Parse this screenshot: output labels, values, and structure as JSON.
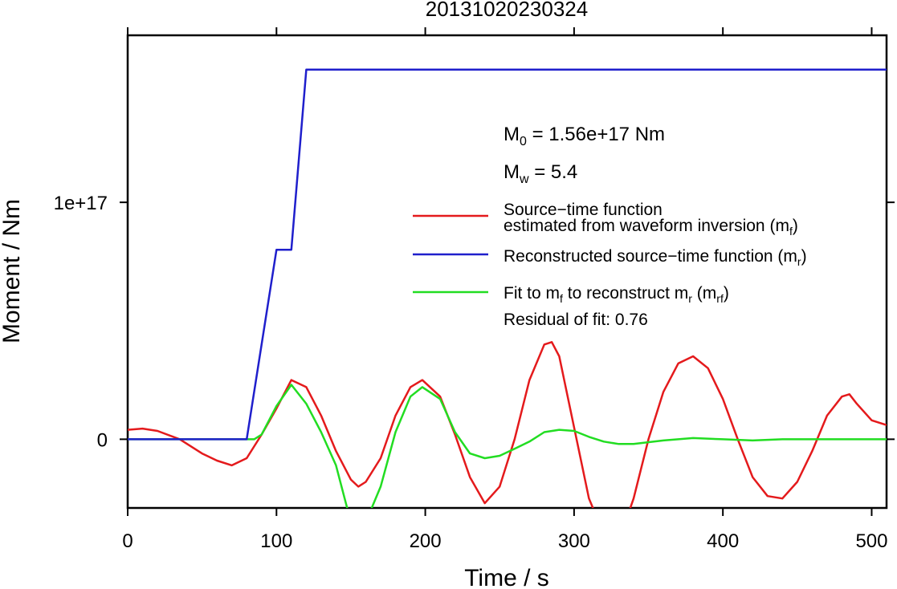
{
  "chart_data": {
    "type": "line",
    "title": "20131020230324",
    "xlabel": "Time / s",
    "ylabel": "Moment / Nm",
    "xlim": [
      0,
      510
    ],
    "ylim": [
      -2.9e+16,
      1.705e+17
    ],
    "x_ticks": [
      {
        "value": 0,
        "label": "0"
      },
      {
        "value": 100,
        "label": "100"
      },
      {
        "value": 200,
        "label": "200"
      },
      {
        "value": 300,
        "label": "300"
      },
      {
        "value": 400,
        "label": "400"
      },
      {
        "value": 500,
        "label": "500"
      }
    ],
    "y_ticks": [
      {
        "value": 0,
        "label": "0"
      },
      {
        "value": 1e+17,
        "label": "1e+17"
      }
    ],
    "annotations": {
      "m0": {
        "main": "M",
        "sub": "0",
        "rest": " = 1.56e+17 Nm"
      },
      "mw": {
        "main": "M",
        "sub": "w",
        "rest": " = 5.4"
      },
      "residual": "Residual of fit: 0.76"
    },
    "legend": [
      {
        "color": "#e41a1c",
        "line1": "Source−time function",
        "line2": "estimated from waveform inversion (m",
        "sub": "f",
        "close": ")"
      },
      {
        "color": "#1f1fcc",
        "line1": "Reconstructed source−time function (m",
        "sub": "r",
        "close": ")"
      },
      {
        "color": "#22dd22",
        "line1": "Fit to m",
        "sub1": "f",
        "mid": " to reconstruct m",
        "sub2": "r",
        "mid2": " (m",
        "sub3": "rf",
        "close": ")"
      }
    ],
    "series": [
      {
        "key": "reconstructed",
        "color": "#1f1fcc",
        "x": [
          0,
          80,
          100,
          110,
          120,
          510
        ],
        "y": [
          0,
          0,
          8e+16,
          8e+16,
          1.56e+17,
          1.56e+17
        ]
      },
      {
        "key": "waveform_inversion",
        "color": "#e41a1c",
        "x": [
          0,
          10,
          20,
          35,
          50,
          60,
          70,
          80,
          90,
          100,
          110,
          120,
          130,
          140,
          150,
          155,
          160,
          170,
          180,
          190,
          198,
          210,
          220,
          230,
          240,
          250,
          260,
          270,
          280,
          285,
          290,
          300,
          310,
          320,
          330,
          340,
          350,
          360,
          370,
          380,
          390,
          400,
          410,
          420,
          430,
          440,
          450,
          460,
          470,
          480,
          485,
          490,
          500,
          510
        ],
        "y": [
          4000000000000000.0,
          4500000000000000.0,
          3500000000000000.0,
          0,
          -6000000000000000.0,
          -9000000000000000.0,
          -1.1e+16,
          -8000000000000000.0,
          2000000000000000.0,
          1.3e+16,
          2.5e+16,
          2.2e+16,
          1e+16,
          -5000000000000000.0,
          -1.7e+16,
          -2e+16,
          -1.8e+16,
          -8000000000000000.0,
          1e+16,
          2.2e+16,
          2.5e+16,
          1.8e+16,
          2000000000000000.0,
          -1.6e+16,
          -2.7e+16,
          -2e+16,
          0,
          2.5e+16,
          4e+16,
          4.1e+16,
          3.5e+16,
          5000000000000000.0,
          -2.5e+16,
          -4e+16,
          -4.3e+16,
          -2.5e+16,
          0,
          2e+16,
          3.2e+16,
          3.5e+16,
          3e+16,
          1.7e+16,
          0,
          -1.6e+16,
          -2.4e+16,
          -2.5e+16,
          -1.8e+16,
          -5000000000000000.0,
          1e+16,
          1.8e+16,
          1.9e+16,
          1.5e+16,
          8000000000000000.0,
          6000000000000000.0
        ]
      },
      {
        "key": "fit",
        "color": "#22dd22",
        "x": [
          0,
          80,
          85,
          90,
          100,
          110,
          120,
          130,
          140,
          150,
          155,
          160,
          170,
          180,
          190,
          198,
          210,
          220,
          230,
          240,
          250,
          260,
          270,
          280,
          290,
          300,
          310,
          320,
          330,
          340,
          360,
          380,
          400,
          420,
          440,
          460,
          480,
          500,
          510
        ],
        "y": [
          0,
          0,
          0,
          2000000000000000.0,
          1.4e+16,
          2.3e+16,
          1.5e+16,
          3000000000000000.0,
          -1.1e+16,
          -3.5e+16,
          -3.8e+16,
          -3.5e+16,
          -2e+16,
          3000000000000000.0,
          1.8e+16,
          2.2e+16,
          1.7e+16,
          3000000000000000.0,
          -6000000000000000.0,
          -8000000000000000.0,
          -7000000000000000.0,
          -4000000000000000.0,
          -1000000000000000.0,
          3000000000000000.0,
          4000000000000000.0,
          3500000000000000.0,
          1000000000000000.0,
          -1000000000000000.0,
          -2000000000000000.0,
          -2000000000000000.0,
          -500000000000000.0,
          500000000000000.0,
          0,
          -500000000000000.0,
          0,
          0,
          0,
          0,
          0
        ]
      }
    ]
  }
}
